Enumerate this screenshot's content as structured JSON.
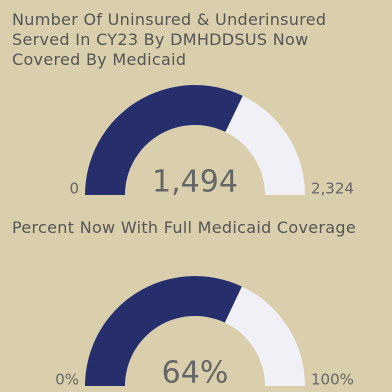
{
  "chart_data": [
    {
      "type": "gauge",
      "title": "Number Of Uninsured & Underinsured Served In CY23 By DMHDDSUS Now Covered By Medicaid",
      "values": [
        1494
      ],
      "value_labels": [
        "1,494"
      ],
      "ylim": [
        0,
        2324
      ],
      "yticks": [
        0,
        {
          "value": 2324,
          "label": "2,324"
        }
      ],
      "color": "#262f6c",
      "track_color": "#f1f0f6"
    },
    {
      "type": "gauge",
      "title": "Percent Now With Full Medicaid Coverage",
      "values": [
        64
      ],
      "value_labels": [
        "64%"
      ],
      "ylim": [
        0,
        100
      ],
      "yticks": [
        {
          "value": 0,
          "label": "0%"
        },
        {
          "value": 100,
          "label": "100%"
        }
      ],
      "color": "#262f6c",
      "track_color": "#f1f0f6"
    }
  ]
}
